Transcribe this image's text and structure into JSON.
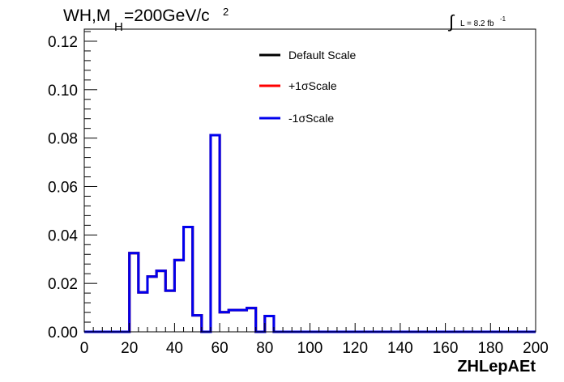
{
  "chart_data": {
    "type": "step-histogram",
    "title": {
      "base": "WH,M",
      "subscript": "H",
      "value": "=200GeV/c",
      "superscript": "2"
    },
    "lumi": {
      "symbol": "∫",
      "text": "L = 8.2 fb",
      "superscript": "-1"
    },
    "xlabel": "ZHLepAEt",
    "ylabel": "",
    "xlim": [
      0,
      200
    ],
    "ylim": [
      0,
      0.125
    ],
    "x_ticks": [
      0,
      20,
      40,
      60,
      80,
      100,
      120,
      140,
      160,
      180,
      200
    ],
    "x_tick_labels": [
      "0",
      "20",
      "40",
      "60",
      "80",
      "100",
      "120",
      "140",
      "160",
      "180",
      "200"
    ],
    "y_ticks": [
      0,
      0.02,
      0.04,
      0.06,
      0.08,
      0.1,
      0.12
    ],
    "y_tick_labels": [
      "0.00",
      "0.02",
      "0.04",
      "0.06",
      "0.08",
      "0.10",
      "0.12"
    ],
    "bin_width": 4,
    "grid": false,
    "legend": {
      "position": "top-center",
      "entries": [
        {
          "name": "Default Scale",
          "color": "#000000"
        },
        {
          "name": "+1σScale",
          "color": "#ff0000"
        },
        {
          "name": "-1σScale",
          "color": "#0000ee"
        }
      ]
    },
    "series": [
      {
        "name": "Default Scale",
        "color": "#000000",
        "bin_edges": [
          0,
          4,
          8,
          12,
          16,
          20,
          24,
          28,
          32,
          36,
          40,
          44,
          48,
          52,
          56,
          60,
          64,
          68,
          72,
          76,
          80,
          84,
          88,
          92,
          96,
          100,
          104,
          108,
          112,
          116,
          120,
          124,
          128,
          132,
          136,
          140,
          144,
          148,
          152,
          156,
          160,
          164,
          168,
          172,
          176,
          180,
          184,
          188,
          192,
          196,
          200
        ],
        "values": [
          0,
          0,
          0,
          0,
          0,
          0.0325,
          0.0163,
          0.0228,
          0.0252,
          0.017,
          0.0296,
          0.0433,
          0.0068,
          0,
          0.0812,
          0.0081,
          0.009,
          0.009,
          0.0098,
          0,
          0.0065,
          0,
          0,
          0,
          0,
          0,
          0,
          0,
          0,
          0,
          0,
          0,
          0,
          0,
          0,
          0,
          0,
          0,
          0,
          0,
          0,
          0,
          0,
          0,
          0,
          0,
          0,
          0,
          0,
          0
        ]
      },
      {
        "name": "+1σScale",
        "color": "#ff0000",
        "bin_edges": [
          0,
          4,
          8,
          12,
          16,
          20,
          24,
          28,
          32,
          36,
          40,
          44,
          48,
          52,
          56,
          60,
          64,
          68,
          72,
          76,
          80,
          84,
          88,
          92,
          96,
          100,
          104,
          108,
          112,
          116,
          120,
          124,
          128,
          132,
          136,
          140,
          144,
          148,
          152,
          156,
          160,
          164,
          168,
          172,
          176,
          180,
          184,
          188,
          192,
          196,
          200
        ],
        "values": [
          0,
          0,
          0,
          0,
          0,
          0.0325,
          0.0163,
          0.0228,
          0.0252,
          0.017,
          0.0296,
          0.0433,
          0.0068,
          0,
          0.0812,
          0.0081,
          0.009,
          0.009,
          0.0098,
          0,
          0.0065,
          0,
          0,
          0,
          0,
          0,
          0,
          0,
          0,
          0,
          0,
          0,
          0,
          0,
          0,
          0,
          0,
          0,
          0,
          0,
          0,
          0,
          0,
          0,
          0,
          0,
          0,
          0,
          0,
          0
        ]
      },
      {
        "name": "-1σScale",
        "color": "#0000ee",
        "bin_edges": [
          0,
          4,
          8,
          12,
          16,
          20,
          24,
          28,
          32,
          36,
          40,
          44,
          48,
          52,
          56,
          60,
          64,
          68,
          72,
          76,
          80,
          84,
          88,
          92,
          96,
          100,
          104,
          108,
          112,
          116,
          120,
          124,
          128,
          132,
          136,
          140,
          144,
          148,
          152,
          156,
          160,
          164,
          168,
          172,
          176,
          180,
          184,
          188,
          192,
          196,
          200
        ],
        "values": [
          0,
          0,
          0,
          0,
          0,
          0.0325,
          0.0163,
          0.0228,
          0.0252,
          0.017,
          0.0296,
          0.0433,
          0.0068,
          0,
          0.0812,
          0.0081,
          0.009,
          0.009,
          0.0098,
          0,
          0.0065,
          0,
          0,
          0,
          0,
          0,
          0,
          0,
          0,
          0,
          0,
          0,
          0,
          0,
          0,
          0,
          0,
          0,
          0,
          0,
          0,
          0,
          0,
          0,
          0,
          0,
          0,
          0,
          0,
          0
        ]
      }
    ]
  }
}
